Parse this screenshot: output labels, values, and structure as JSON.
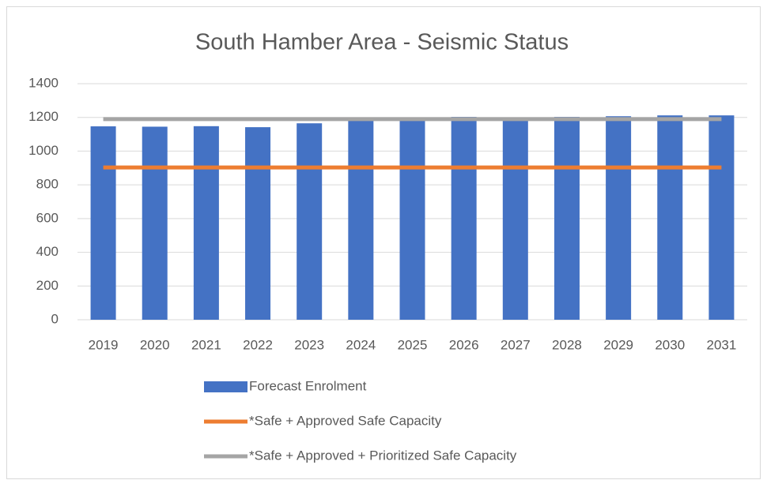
{
  "chart_data": {
    "type": "bar",
    "title": "South Hamber Area - Seismic Status",
    "categories": [
      "2019",
      "2020",
      "2021",
      "2022",
      "2023",
      "2024",
      "2025",
      "2026",
      "2027",
      "2028",
      "2029",
      "2030",
      "2031"
    ],
    "series": [
      {
        "name": "Forecast Enrolment",
        "type": "bar",
        "color": "#4472c4",
        "values": [
          1147,
          1145,
          1148,
          1142,
          1165,
          1180,
          1185,
          1203,
          1185,
          1203,
          1207,
          1212,
          1212
        ]
      },
      {
        "name": "*Safe + Approved Safe Capacity",
        "type": "line",
        "color": "#ed7d31",
        "values": [
          903,
          903,
          903,
          903,
          903,
          903,
          903,
          903,
          903,
          903,
          903,
          903,
          903
        ]
      },
      {
        "name": "*Safe + Approved + Prioritized Safe Capacity",
        "type": "line",
        "color": "#a5a5a5",
        "values": [
          1190,
          1190,
          1190,
          1190,
          1190,
          1190,
          1190,
          1190,
          1190,
          1190,
          1190,
          1190,
          1190
        ]
      }
    ],
    "ylim": [
      0,
      1400
    ],
    "yticks": [
      0,
      200,
      400,
      600,
      800,
      1000,
      1200,
      1400
    ],
    "grid": true
  }
}
